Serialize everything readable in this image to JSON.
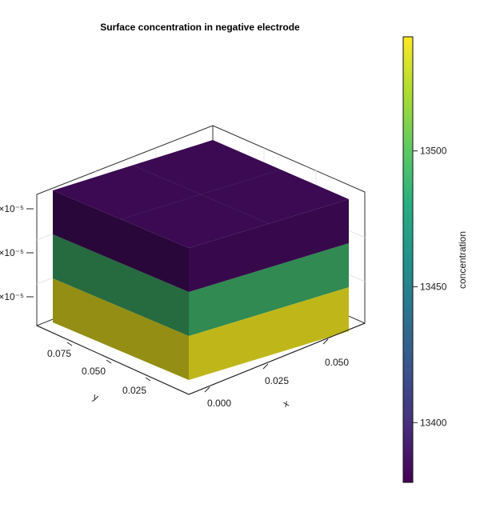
{
  "chart_data": {
    "type": "heatmap",
    "title": "Surface concentration in negative electrode",
    "xlabel": "x",
    "ylabel": "y",
    "x_ticks": [
      "0.000",
      "0.025",
      "0.050"
    ],
    "y_ticks": [
      "0.075",
      "0.050",
      "0.025"
    ],
    "z_ticks": [
      "×10⁻⁵",
      "×10⁻⁵",
      "×10⁻⁵"
    ],
    "layers": [
      {
        "layer": "bottom",
        "value": 13540,
        "color": "#cdc51c"
      },
      {
        "layer": "middle",
        "value": 13455,
        "color": "#349458"
      },
      {
        "layer": "top",
        "value": 13380,
        "color": "#3b0a52"
      }
    ],
    "colorbar": {
      "label": "concentration",
      "range": [
        13378,
        13542
      ],
      "ticks": [
        13400,
        13450,
        13500
      ],
      "tick_labels": [
        "13400",
        "13450",
        "13500"
      ],
      "colormap": "viridis"
    }
  }
}
